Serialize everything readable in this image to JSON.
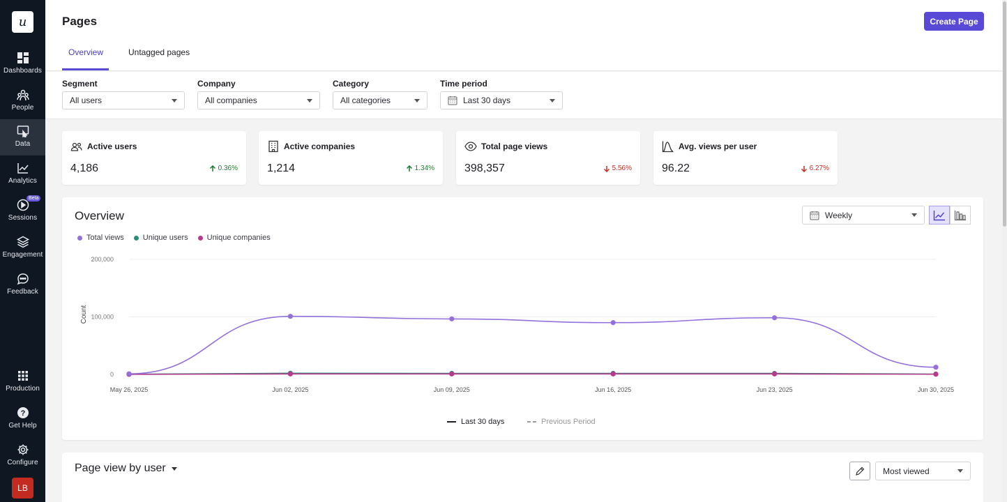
{
  "app": {
    "logo_letter": "u"
  },
  "sidebar": {
    "items": [
      {
        "label": "Dashboards",
        "icon": "dashboard-icon"
      },
      {
        "label": "People",
        "icon": "people-icon"
      },
      {
        "label": "Data",
        "icon": "data-icon"
      },
      {
        "label": "Analytics",
        "icon": "analytics-icon"
      },
      {
        "label": "Sessions",
        "icon": "sessions-icon",
        "badge": "Beta"
      },
      {
        "label": "Engagement",
        "icon": "layers-icon"
      },
      {
        "label": "Feedback",
        "icon": "chat-icon"
      },
      {
        "label": "Production",
        "icon": "grid-icon"
      },
      {
        "label": "Get Help",
        "icon": "help-icon"
      },
      {
        "label": "Configure",
        "icon": "gear-icon"
      }
    ],
    "active": "Data",
    "avatar_initials": "LB"
  },
  "header": {
    "title": "Pages",
    "create_button": "Create Page",
    "tabs": [
      {
        "label": "Overview",
        "active": true
      },
      {
        "label": "Untagged pages",
        "active": false
      }
    ]
  },
  "filters": {
    "segment": {
      "label": "Segment",
      "value": "All users"
    },
    "company": {
      "label": "Company",
      "value": "All companies"
    },
    "category": {
      "label": "Category",
      "value": "All categories"
    },
    "time_period": {
      "label": "Time period",
      "value": "Last 30 days"
    }
  },
  "stats": [
    {
      "label": "Active users",
      "value": "4,186",
      "delta": "0.36%",
      "direction": "up",
      "icon": "users-icon"
    },
    {
      "label": "Active companies",
      "value": "1,214",
      "delta": "1.34%",
      "direction": "up",
      "icon": "building-icon"
    },
    {
      "label": "Total page views",
      "value": "398,357",
      "delta": "5.56%",
      "direction": "down",
      "icon": "eye-icon"
    },
    {
      "label": "Avg. views per user",
      "value": "96.22",
      "delta": "6.27%",
      "direction": "down",
      "icon": "bell-curve-icon"
    }
  ],
  "overview": {
    "title": "Overview",
    "interval": "Weekly",
    "legend": [
      {
        "name": "Total views",
        "color": "#9370db"
      },
      {
        "name": "Unique users",
        "color": "#2e8b7a"
      },
      {
        "name": "Unique companies",
        "color": "#b83a8a"
      }
    ],
    "period_legend": {
      "current": "Last 30 days",
      "previous": "Previous Period"
    }
  },
  "chart_data": {
    "type": "line",
    "x": [
      "May 26, 2025",
      "Jun 02, 2025",
      "Jun 09, 2025",
      "Jun 16, 2025",
      "Jun 23, 2025",
      "Jun 30, 2025"
    ],
    "ylabel": "Count",
    "ylim": [
      0,
      200000
    ],
    "yticks": [
      "0",
      "100,000",
      "200,000"
    ],
    "yticks_values": [
      0,
      100000,
      200000
    ],
    "grid": true,
    "series": [
      {
        "name": "Total views",
        "color": "#9370db",
        "values": [
          1000,
          101000,
          96500,
          90000,
          98500,
          12500
        ]
      },
      {
        "name": "Unique users",
        "color": "#2e8b7a",
        "values": [
          400,
          2000,
          1800,
          1800,
          1700,
          600
        ]
      },
      {
        "name": "Unique companies",
        "color": "#b83a8a",
        "values": [
          100,
          800,
          800,
          800,
          800,
          300
        ]
      }
    ]
  },
  "page_view": {
    "title": "Page view by user",
    "sort": "Most viewed"
  }
}
